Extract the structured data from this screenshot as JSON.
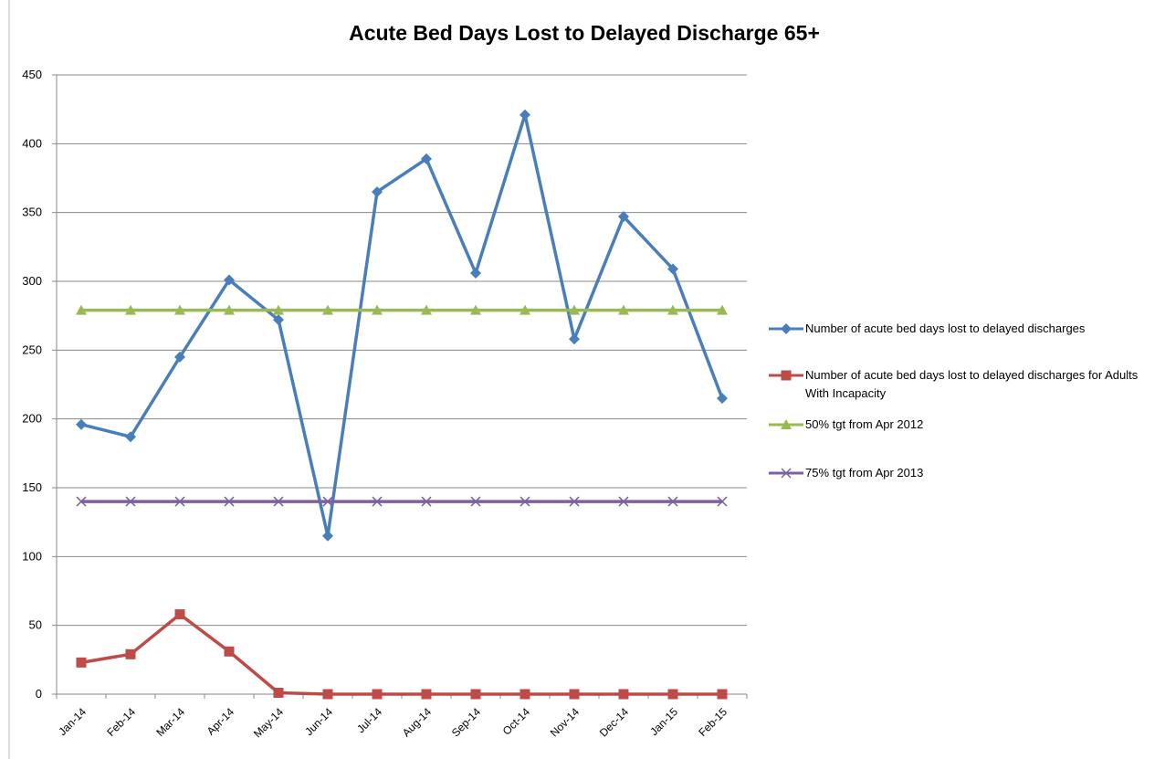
{
  "chart_data": {
    "type": "line",
    "title": "Acute Bed Days Lost to Delayed Discharge 65+",
    "categories": [
      "Jan-14",
      "Feb-14",
      "Mar-14",
      "Apr-14",
      "May-14",
      "Jun-14",
      "Jul-14",
      "Aug-14",
      "Sep-14",
      "Oct-14",
      "Nov-14",
      "Dec-14",
      "Jan-15",
      "Feb-15"
    ],
    "series": [
      {
        "name": "Number of acute bed days lost to delayed discharges",
        "color": "#4a7ebb",
        "marker": "diamond",
        "values": [
          196,
          187,
          245,
          301,
          272,
          115,
          365,
          389,
          306,
          421,
          258,
          347,
          309,
          215
        ]
      },
      {
        "name": "Number of acute bed days lost to delayed discharges for Adults With Incapacity",
        "color": "#be4b48",
        "marker": "square",
        "values": [
          23,
          29,
          58,
          31,
          1,
          0,
          0,
          0,
          0,
          0,
          0,
          0,
          0,
          0
        ]
      },
      {
        "name": "50% tgt from Apr 2012",
        "color": "#98b954",
        "marker": "triangle",
        "values": [
          279,
          279,
          279,
          279,
          279,
          279,
          279,
          279,
          279,
          279,
          279,
          279,
          279,
          279
        ]
      },
      {
        "name": "75% tgt from Apr 2013",
        "color": "#7d60a0",
        "marker": "x",
        "values": [
          140,
          140,
          140,
          140,
          140,
          140,
          140,
          140,
          140,
          140,
          140,
          140,
          140,
          140
        ]
      }
    ],
    "ylim": [
      0,
      450
    ],
    "yticks": [
      0,
      50,
      100,
      150,
      200,
      250,
      300,
      350,
      400,
      450
    ],
    "grid": true,
    "legend": "right"
  }
}
